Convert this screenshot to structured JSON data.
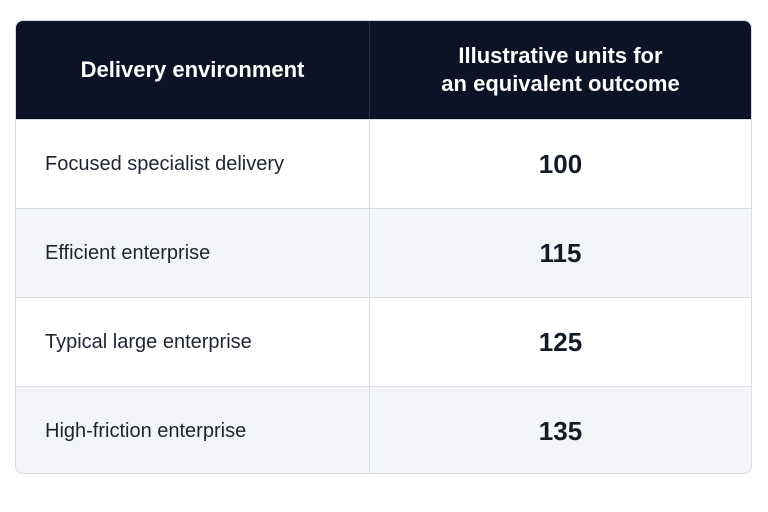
{
  "table": {
    "headers": {
      "environment": "Delivery environment",
      "units": "Illustrative units for\nan equivalent outcome"
    },
    "rows": [
      {
        "environment": "Focused specialist delivery",
        "units": "100"
      },
      {
        "environment": "Efficient enterprise",
        "units": "115"
      },
      {
        "environment": "Typical large enterprise",
        "units": "125"
      },
      {
        "environment": "High-friction enterprise",
        "units": "135"
      }
    ]
  },
  "colors": {
    "header_background": "#0c1326",
    "header_text": "#ffffff",
    "alternate_row": "#f4f5f9",
    "border": "#d9dce2"
  }
}
